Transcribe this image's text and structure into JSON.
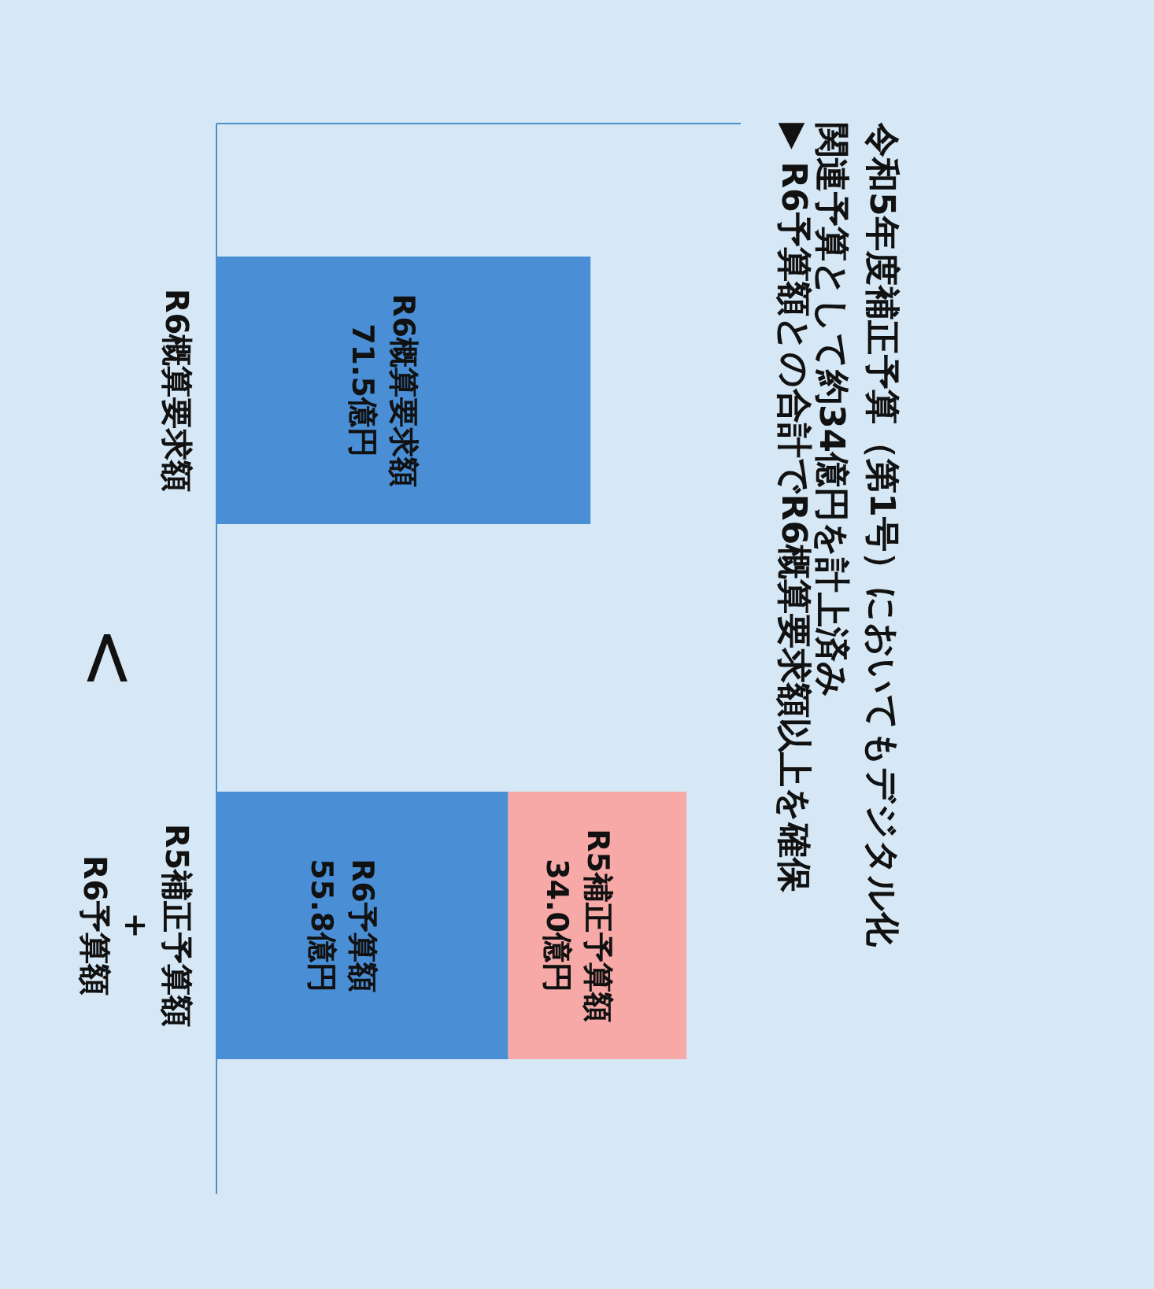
{
  "chart_data": {
    "type": "bar",
    "orientation": "horizontal",
    "title": "令和5年度補正予算（第1号）においてもデジタル化関連予算として約34億円を計上済み",
    "subtitle": "▶ R6予算額との合計でR6概算要求額以上を確保",
    "categories": [
      "R6概算要求額",
      "R5補正予算額\n+\nR6予算額"
    ],
    "stacked": true,
    "xlim": [
      0,
      100
    ],
    "tick_labels": "y",
    "legend": false,
    "series": [
      {
        "color": "#4a8fd6",
        "values": [
          71.5,
          55.8
        ],
        "value_labels": [
          "R6概算要求額\n71.5億円",
          "R6予算額\n55.8億円"
        ]
      },
      {
        "color": "#f6a9a6",
        "values": [
          null,
          34.0
        ],
        "value_labels": [
          null,
          "R5補正予算額\n34.0億円"
        ]
      }
    ],
    "annotations": [
      "<"
    ]
  }
}
